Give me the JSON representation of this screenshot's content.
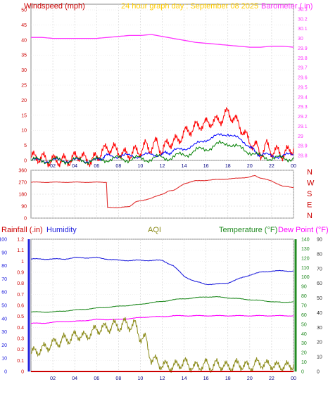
{
  "colors": {
    "wind": "#ff0000",
    "wind_avg": "#0000ff",
    "wind_low": "#008000",
    "baro": "#ff33ff",
    "title": "#ffcc00",
    "dir": "#e03030",
    "humidity": "#2222dd",
    "aqi": "#8b8b1a",
    "temp": "#228b22",
    "dew": "#ff00ff",
    "rain": "#cc0000",
    "rain_axis": "#cc0000",
    "gold": "#ffaa00",
    "x_tick_color": "#000080"
  },
  "chart_data": [
    {
      "type": "line",
      "title": "24 hour graph day : September 08 2025",
      "left_label": "Windspeed (mph)",
      "right_label": "Barometer (.in)",
      "x_ticks": [
        "02",
        "04",
        "06",
        "08",
        "10",
        "12",
        "14",
        "16",
        "18",
        "20",
        "22",
        "00"
      ],
      "y_ticks": [
        "0",
        "5",
        "10",
        "15",
        "20",
        "25",
        "30",
        "35",
        "40",
        "45",
        "50"
      ],
      "y_range": [
        0,
        50
      ],
      "y2_ticks": [
        "28.8",
        "28.9",
        "29",
        "29.1",
        "29.2",
        "29.3",
        "29.4",
        "29.5",
        "29.6",
        "29.7",
        "29.8",
        "29.9",
        "30",
        "30.1",
        "30.2",
        "30.3"
      ],
      "y2_range": [
        28.75,
        30.35
      ],
      "x_range": [
        0,
        24
      ],
      "series": [
        {
          "color_key": "wind",
          "x": [
            0,
            0.5,
            1,
            1.5,
            2,
            2.5,
            3,
            3.5,
            4,
            4.5,
            5,
            5.5,
            6,
            6.5,
            7,
            7.5,
            8,
            8.5,
            9,
            9.5,
            10,
            10.5,
            11,
            11.5,
            12,
            12.5,
            13,
            13.5,
            14,
            14.5,
            15,
            15.5,
            16,
            16.5,
            17,
            17.5,
            18,
            18.5,
            19,
            19.5,
            20,
            20.5,
            21,
            21.5,
            22,
            22.5,
            23,
            23.5,
            24
          ],
          "y": [
            1,
            1,
            1,
            0,
            0,
            0,
            0,
            0,
            1,
            2,
            0,
            0,
            1,
            3,
            4,
            4,
            3,
            2,
            2,
            3,
            3,
            5,
            4,
            6,
            3,
            6,
            6,
            7,
            9,
            10,
            11,
            12,
            12,
            13,
            13,
            14,
            16,
            14,
            12,
            9,
            6,
            5,
            2,
            5,
            3,
            3,
            2,
            3,
            4
          ]
        },
        {
          "color_key": "wind_avg",
          "x": [
            0,
            1,
            2,
            3,
            4,
            5,
            6,
            6.5,
            7,
            8,
            9,
            10,
            11,
            12,
            12.5,
            13,
            14,
            15,
            16,
            17,
            18,
            19,
            20,
            20.5,
            21,
            22,
            23,
            24
          ],
          "y": [
            0,
            0,
            0,
            0,
            0,
            0,
            0,
            1,
            1.5,
            1.5,
            1.5,
            1.5,
            2,
            2,
            2.5,
            3,
            4,
            5,
            7,
            8,
            9,
            7,
            5,
            2.5,
            2,
            1.5,
            1.5,
            2
          ]
        },
        {
          "color_key": "wind_low",
          "x": [
            0,
            1,
            2,
            3,
            4,
            5,
            6,
            7,
            8,
            9,
            10,
            11,
            12,
            13,
            14,
            15,
            16,
            17,
            18,
            19,
            20,
            21,
            22,
            23,
            24
          ],
          "y": [
            0,
            0,
            0,
            0,
            0,
            0,
            0,
            0.5,
            0.5,
            0.5,
            0.5,
            0.5,
            1,
            1,
            2,
            3,
            4,
            5,
            6,
            4,
            3,
            1,
            1,
            0.5,
            1
          ]
        },
        {
          "color_key": "baro",
          "axis": "right",
          "x": [
            0,
            1,
            2,
            3,
            4,
            5,
            6,
            7,
            8,
            9,
            10,
            11,
            12,
            13,
            14,
            15,
            16,
            17,
            18,
            19,
            20,
            21,
            22,
            23,
            24
          ],
          "y": [
            30.01,
            30.01,
            30.0,
            30.0,
            30.0,
            30.0,
            30.0,
            30.01,
            30.02,
            30.03,
            30.03,
            30.04,
            30.02,
            30.0,
            29.98,
            29.96,
            29.95,
            29.94,
            29.93,
            29.92,
            29.91,
            29.91,
            29.92,
            29.92,
            29.91
          ]
        }
      ]
    },
    {
      "type": "line",
      "title": "",
      "x_ticks": [],
      "y_ticks": [
        "0",
        "90",
        "180",
        "270",
        "360"
      ],
      "y_range": [
        0,
        360
      ],
      "x_range": [
        0,
        24
      ],
      "compass": [
        "N",
        "W",
        "S",
        "E",
        "N"
      ],
      "series": [
        {
          "color_key": "dir",
          "x": [
            0,
            1,
            2,
            3,
            4,
            5,
            6,
            6.9,
            7,
            8,
            9,
            9.5,
            10,
            11,
            12,
            12.5,
            13,
            13.5,
            14,
            15,
            16,
            17,
            18,
            19,
            20,
            20.5,
            21,
            22,
            23,
            24
          ],
          "y": [
            270,
            270,
            270,
            270,
            270,
            270,
            270,
            270,
            80,
            80,
            85,
            120,
            130,
            150,
            180,
            200,
            210,
            230,
            260,
            280,
            285,
            290,
            295,
            300,
            310,
            320,
            300,
            280,
            240,
            230
          ]
        }
      ]
    },
    {
      "type": "line",
      "title": "",
      "labels": {
        "rainfall": "Rainfall (.in)",
        "humidity": "Humidity",
        "aqi": "AQI",
        "temperature": "Temperature (°F)",
        "dew_point": "Dew Point (°F)"
      },
      "x_ticks": [
        "02",
        "04",
        "06",
        "08",
        "10",
        "12",
        "14",
        "16",
        "18",
        "20",
        "22",
        "00"
      ],
      "rain_ticks": [
        "0",
        "0.1",
        "0.2",
        "0.3",
        "0.4",
        "0.5",
        "0.6",
        "0.7",
        "0.8",
        "0.9",
        "1",
        "1.1",
        "1.2"
      ],
      "rain_range": [
        0,
        1.2
      ],
      "humidity_ticks": [
        "0",
        "10",
        "20",
        "30",
        "40",
        "50",
        "60",
        "70",
        "80",
        "90",
        "100"
      ],
      "humidity_range": [
        0,
        100
      ],
      "temp_ticks": [
        "0",
        "10",
        "20",
        "30",
        "40",
        "50",
        "60",
        "70",
        "80",
        "90",
        "100",
        "110",
        "120",
        "130",
        "140"
      ],
      "temp_range": [
        0,
        140
      ],
      "aqi_ticks": [
        "0",
        "10",
        "20",
        "30",
        "40",
        "50",
        "60",
        "70",
        "80",
        "90"
      ],
      "aqi_range": [
        0,
        90
      ],
      "x_range": [
        0,
        24
      ],
      "series": [
        {
          "color_key": "humidity",
          "axis": "humidity",
          "x": [
            0,
            1,
            2,
            3,
            4,
            5,
            6,
            7,
            8,
            9,
            10,
            11,
            12,
            13,
            14,
            15,
            16,
            17,
            18,
            19,
            20,
            21,
            22,
            23,
            24
          ],
          "y": [
            85,
            85,
            85,
            85,
            86,
            86,
            86,
            85,
            84,
            84,
            84,
            84,
            84,
            80,
            72,
            68,
            66,
            66,
            67,
            70,
            73,
            75,
            76,
            76,
            76
          ]
        },
        {
          "color_key": "temp",
          "axis": "temp",
          "x": [
            0,
            1,
            2,
            3,
            4,
            5,
            6,
            7,
            8,
            9,
            10,
            11,
            12,
            13,
            14,
            15,
            16,
            17,
            18,
            19,
            20,
            21,
            22,
            23,
            24
          ],
          "y": [
            63,
            63,
            63,
            64,
            65,
            66,
            67,
            68,
            69,
            70,
            71,
            73,
            74,
            76,
            77,
            78,
            79,
            79,
            78,
            77,
            76,
            75,
            74,
            73,
            74
          ]
        },
        {
          "color_key": "dew",
          "axis": "temp",
          "x": [
            0,
            1,
            2,
            3,
            4,
            5,
            6,
            7,
            8,
            9,
            10,
            11,
            12,
            13,
            14,
            15,
            16,
            17,
            18,
            19,
            20,
            21,
            22,
            23,
            24
          ],
          "y": [
            51,
            51,
            52,
            53,
            53,
            54,
            55,
            55,
            55,
            56,
            57,
            58,
            58,
            59,
            59,
            59,
            59,
            59,
            59,
            59,
            59,
            59,
            59,
            59,
            59
          ]
        },
        {
          "color_key": "aqi",
          "axis": "aqi",
          "x": [
            0,
            0.5,
            1,
            1.5,
            2,
            2.5,
            3,
            3.5,
            4,
            4.5,
            5,
            5.5,
            6,
            6.5,
            7,
            7.5,
            8,
            8.5,
            9,
            9.5,
            10,
            10.5,
            11,
            11.5,
            12,
            12.5,
            13,
            13.5,
            14,
            14.5,
            15,
            15.5,
            16,
            16.5,
            17,
            17.5,
            18,
            18.5,
            19,
            19.5,
            20,
            20.5,
            21,
            21.5,
            22,
            22.5,
            23,
            23.5,
            24
          ],
          "y": [
            12,
            14,
            15,
            17,
            19,
            20,
            22,
            22,
            24,
            25,
            23,
            27,
            28,
            30,
            29,
            32,
            30,
            33,
            31,
            32,
            23,
            22,
            8,
            7,
            4,
            4,
            3,
            5,
            6,
            4,
            3,
            4,
            5,
            3,
            5,
            4,
            3,
            4,
            5,
            4,
            3,
            5,
            6,
            4,
            5,
            3,
            4,
            3,
            5
          ]
        },
        {
          "color_key": "rain",
          "axis": "rain",
          "x": [
            0,
            24
          ],
          "y": [
            0,
            0
          ]
        }
      ]
    }
  ]
}
